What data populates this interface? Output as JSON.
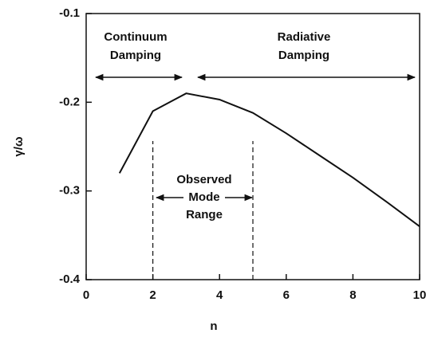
{
  "chart_data": {
    "type": "line",
    "x_label": "n",
    "y_label": "γ/ω",
    "x": [
      1,
      2,
      3,
      4,
      5,
      6,
      7,
      8,
      9,
      10
    ],
    "series": [
      {
        "color": "#111111",
        "values": [
          -0.28,
          -0.21,
          -0.19,
          -0.197,
          -0.212,
          -0.235,
          -0.26,
          -0.285,
          -0.312,
          -0.34
        ]
      }
    ],
    "xlim": [
      0,
      10
    ],
    "xticks": [
      0,
      2,
      4,
      6,
      8,
      10
    ],
    "ylim": [
      -0.4,
      -0.1
    ],
    "yticks": [
      -0.4,
      -0.3,
      -0.2,
      -0.1
    ],
    "vlines": [
      2,
      5
    ],
    "annotations": [
      "Continuum",
      "Damping",
      "Radiative",
      "Damping",
      "Observed",
      "Mode",
      "Range"
    ],
    "grid": false
  }
}
